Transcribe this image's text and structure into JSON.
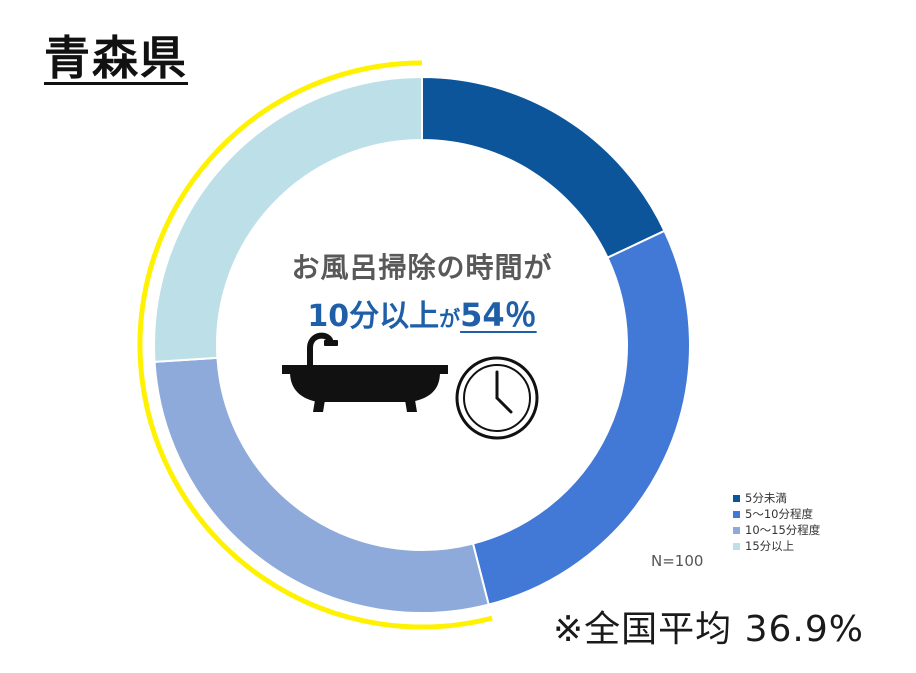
{
  "page": {
    "prefecture": "青森県",
    "center_title": "お風呂掃除の時間が",
    "center_highlight": {
      "part1": "10分以上",
      "part2": "が",
      "part3": "54％"
    },
    "sample_size": "N=100",
    "national_average": "※全国平均 36.9%"
  },
  "icons": [
    "bathtub-icon",
    "clock-icon"
  ],
  "colors": {
    "highlight_ring": "#fff200",
    "accent_text": "#1f5fa8"
  },
  "chart_data": {
    "type": "pie",
    "variant": "donut",
    "categories": [
      "5分未満",
      "5～10分程度",
      "10～15分程度",
      "15分以上"
    ],
    "values": [
      18,
      28,
      28,
      26
    ],
    "unit": "%",
    "colors": [
      "#0c559b",
      "#4279d6",
      "#8eaadb",
      "#bde0e8"
    ],
    "legend_position": "bottom-right",
    "highlighted_categories": [
      "10～15分程度",
      "15分以上"
    ]
  }
}
